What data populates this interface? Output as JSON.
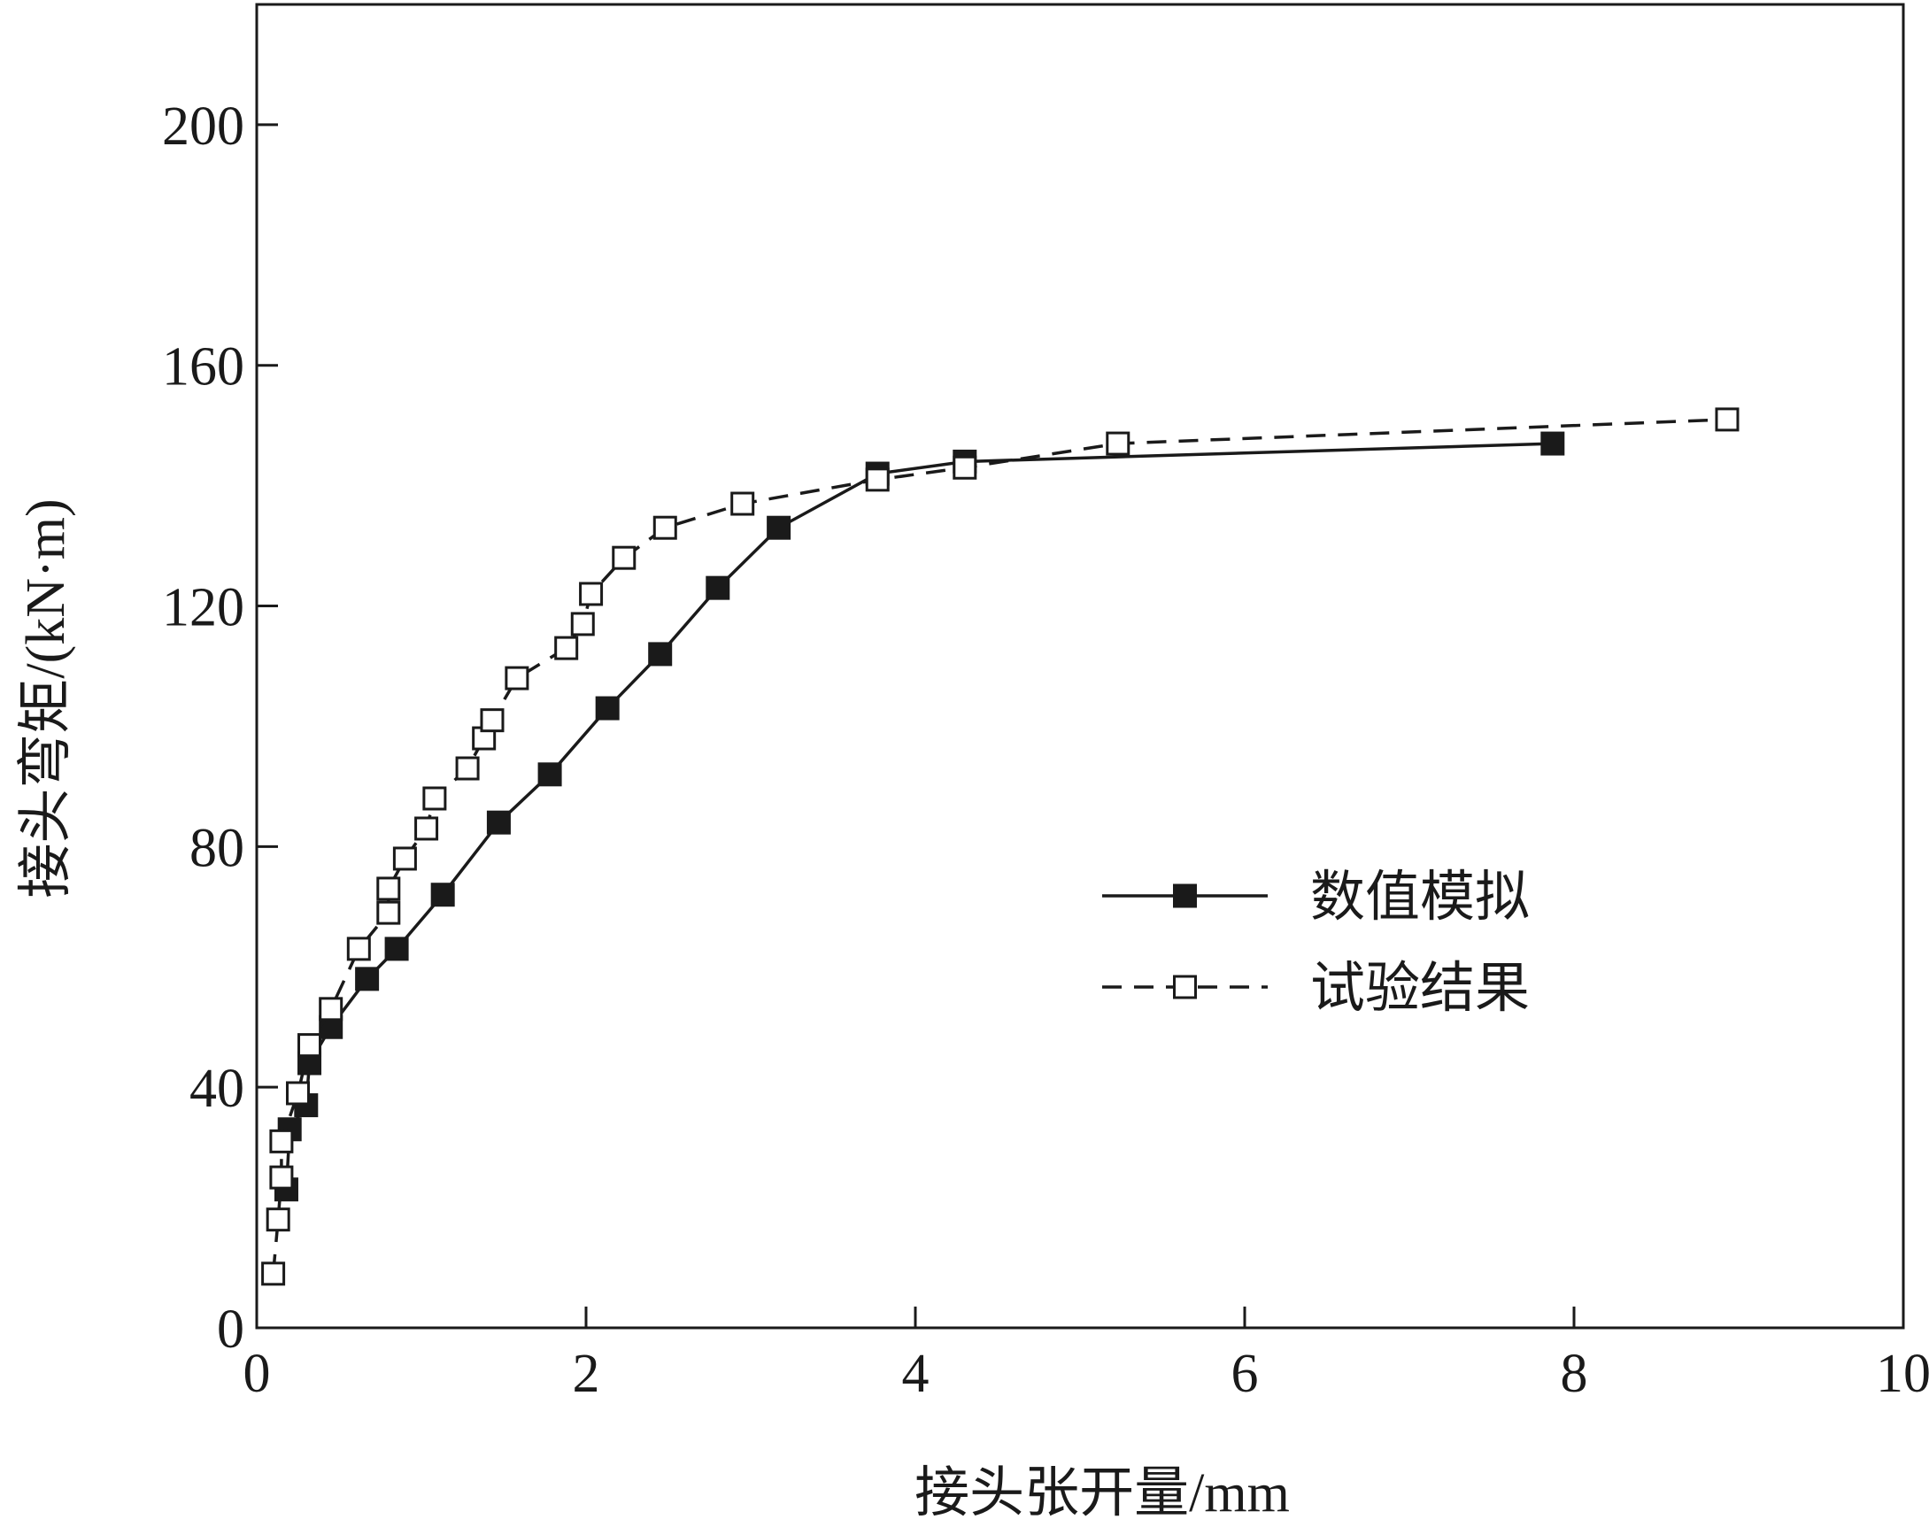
{
  "chart_data": {
    "type": "line",
    "xlabel": "接头张开量/mm",
    "ylabel": "接头弯矩/(kN·m)",
    "xlim": [
      0,
      10
    ],
    "ylim": [
      0,
      220
    ],
    "x_ticks": [
      0,
      2,
      4,
      6,
      8,
      10
    ],
    "y_ticks": [
      0,
      40,
      80,
      120,
      160,
      200
    ],
    "grid": false,
    "legend_position": "center-right",
    "series": [
      {
        "name": "数值模拟",
        "line_style": "solid",
        "marker": "filled-square",
        "color": "#1a1a1a",
        "points": [
          [
            0.18,
            23
          ],
          [
            0.2,
            33
          ],
          [
            0.3,
            37
          ],
          [
            0.32,
            44
          ],
          [
            0.45,
            50
          ],
          [
            0.67,
            58
          ],
          [
            0.85,
            63
          ],
          [
            1.13,
            72
          ],
          [
            1.47,
            84
          ],
          [
            1.78,
            92
          ],
          [
            2.13,
            103
          ],
          [
            2.45,
            112
          ],
          [
            2.8,
            123
          ],
          [
            3.17,
            133
          ],
          [
            3.77,
            142
          ],
          [
            4.3,
            144
          ],
          [
            7.87,
            147
          ]
        ]
      },
      {
        "name": "试验结果",
        "line_style": "dashed",
        "marker": "open-square",
        "color": "#1a1a1a",
        "points": [
          [
            0.1,
            9
          ],
          [
            0.13,
            18
          ],
          [
            0.15,
            25
          ],
          [
            0.15,
            31
          ],
          [
            0.25,
            39
          ],
          [
            0.32,
            47
          ],
          [
            0.45,
            53
          ],
          [
            0.62,
            63
          ],
          [
            0.8,
            69
          ],
          [
            0.8,
            73
          ],
          [
            0.9,
            78
          ],
          [
            1.03,
            83
          ],
          [
            1.08,
            88
          ],
          [
            1.28,
            93
          ],
          [
            1.38,
            98
          ],
          [
            1.43,
            101
          ],
          [
            1.58,
            108
          ],
          [
            1.88,
            113
          ],
          [
            1.98,
            117
          ],
          [
            2.03,
            122
          ],
          [
            2.23,
            128
          ],
          [
            2.48,
            133
          ],
          [
            2.95,
            137
          ],
          [
            3.77,
            141
          ],
          [
            4.3,
            143
          ],
          [
            5.23,
            147
          ],
          [
            8.93,
            151
          ]
        ]
      }
    ]
  }
}
